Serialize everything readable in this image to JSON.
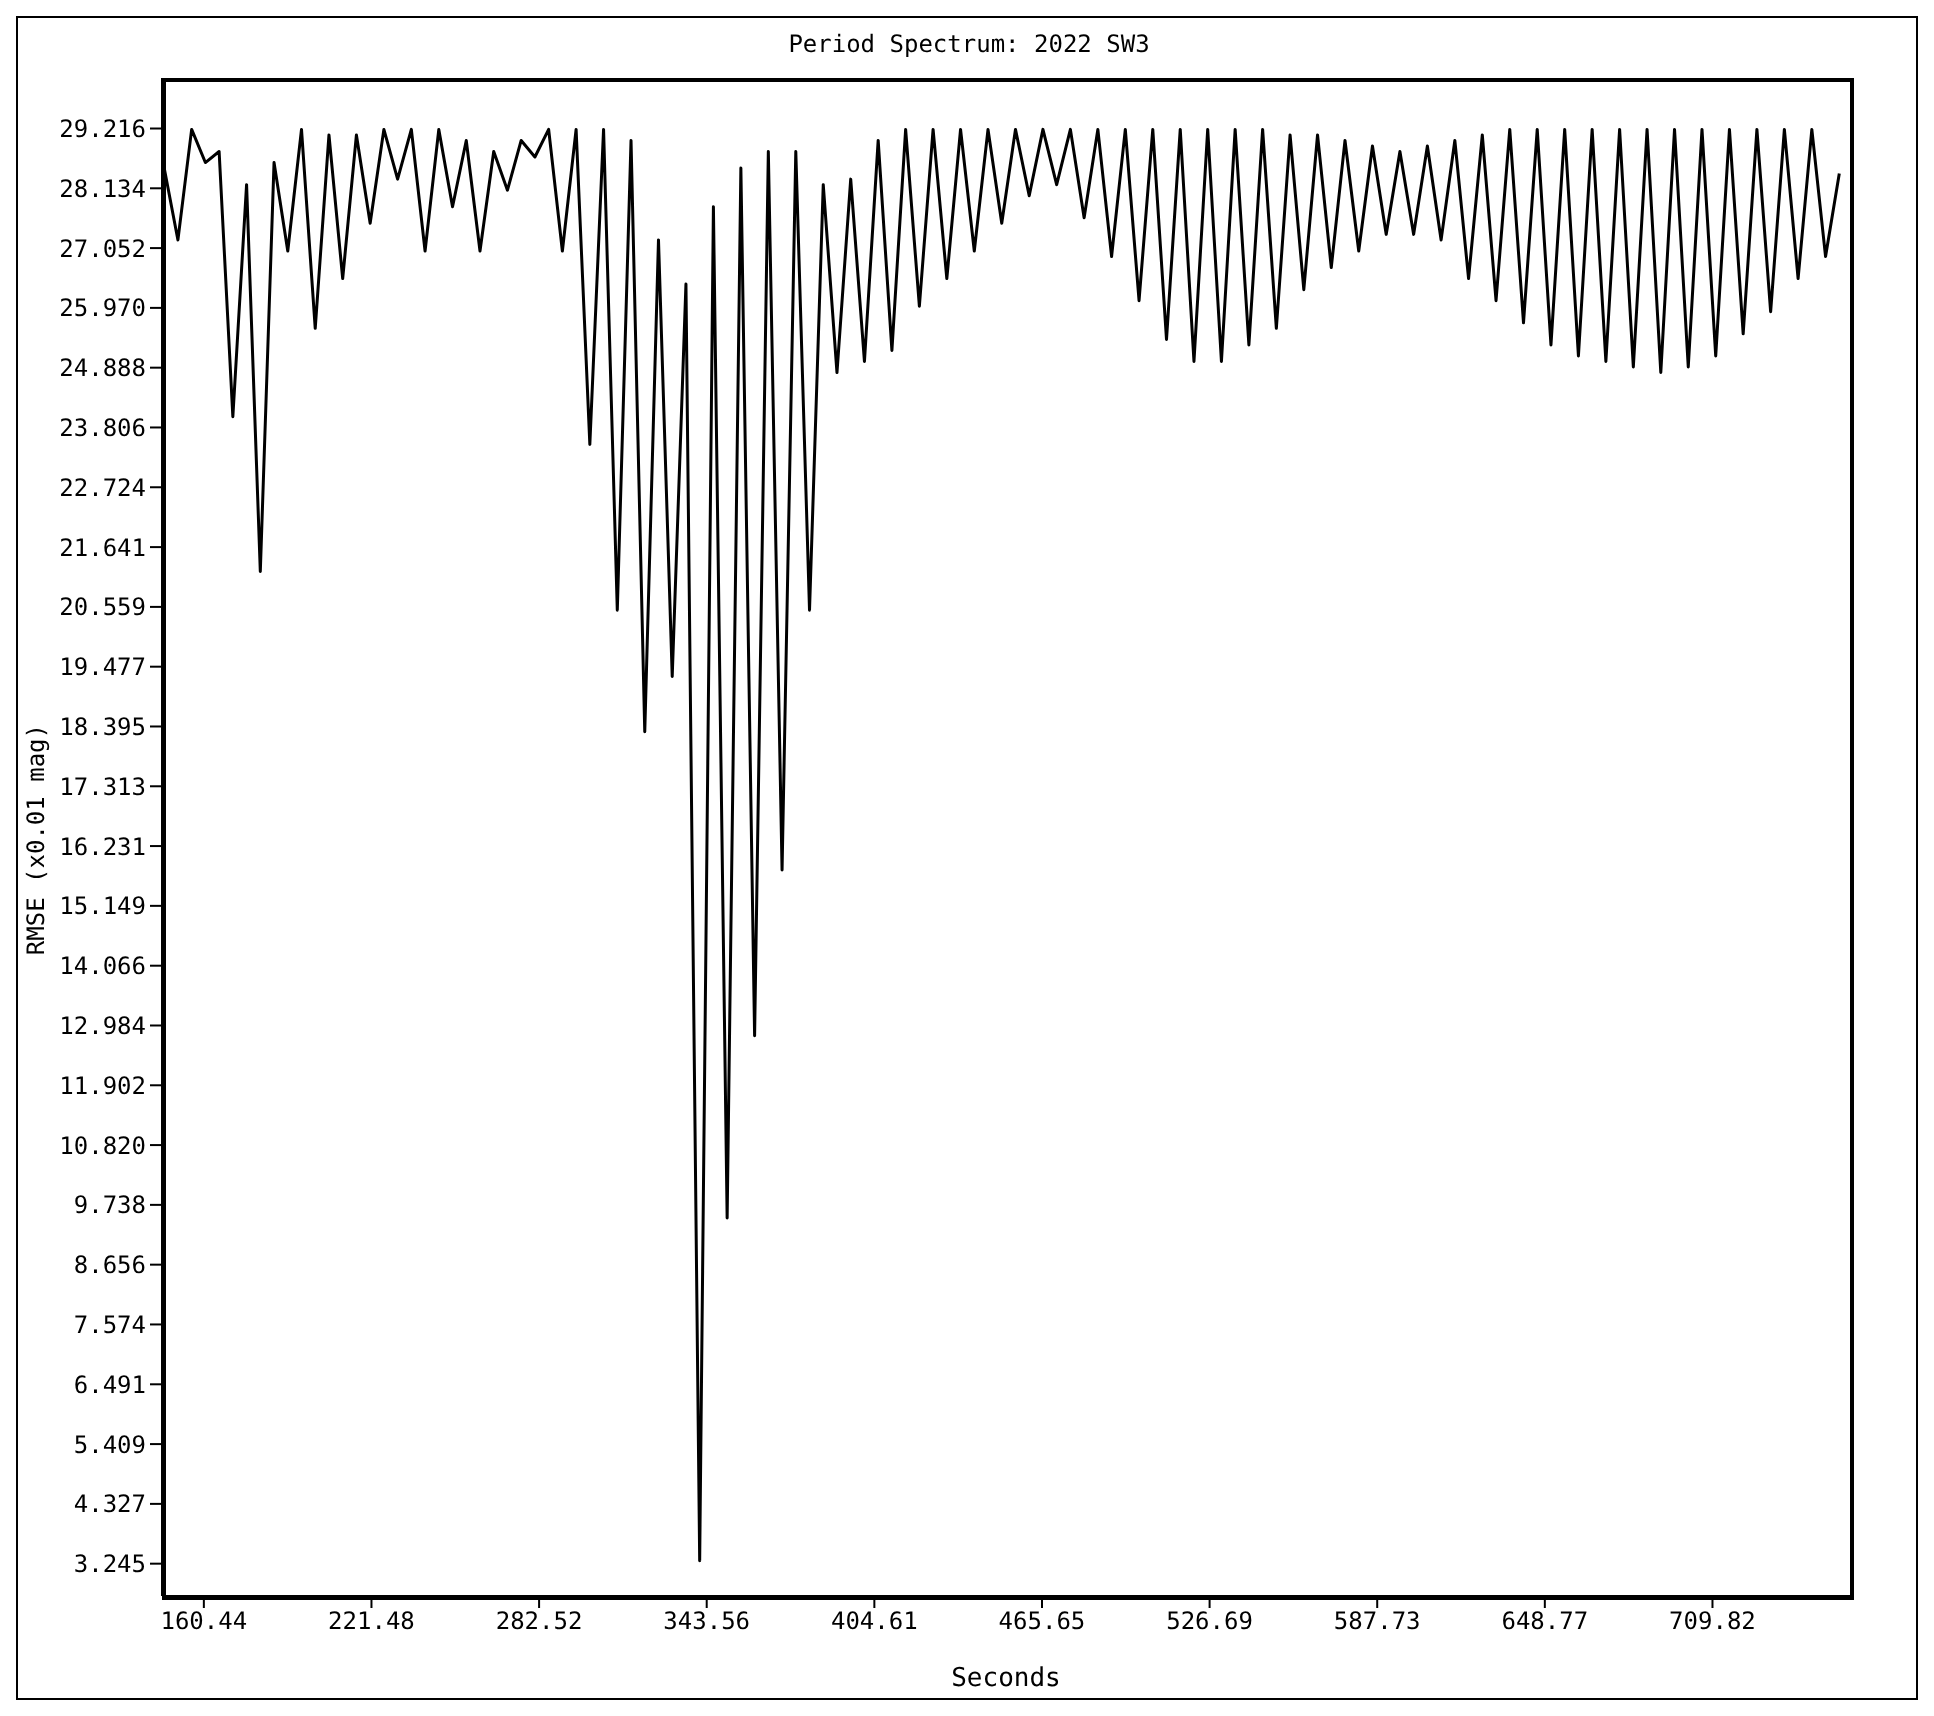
{
  "chart_data": {
    "type": "line",
    "title": "Period Spectrum: 2022 SW3",
    "xlabel": "Seconds",
    "ylabel": "RMSE (x0.01 mag)",
    "color": "#000000",
    "x": [
      146,
      151,
      156,
      161,
      166,
      171,
      176,
      181,
      186,
      191,
      196,
      201,
      206,
      211,
      216,
      221,
      226,
      231,
      236,
      241,
      246,
      251,
      256,
      261,
      266,
      271,
      276,
      281,
      286,
      291,
      296,
      301,
      306,
      311,
      316,
      321,
      326,
      331,
      336,
      341,
      346,
      351,
      356,
      361,
      366,
      371,
      376,
      381,
      386,
      391,
      396,
      401,
      406,
      411,
      416,
      421,
      426,
      431,
      436,
      441,
      446,
      451,
      456,
      461,
      466,
      471,
      476,
      481,
      486,
      491,
      496,
      501,
      506,
      511,
      516,
      521,
      526,
      531,
      536,
      541,
      546,
      551,
      556,
      561,
      566,
      571,
      576,
      581,
      586,
      591,
      596,
      601,
      606,
      611,
      616,
      621,
      626,
      631,
      636,
      641,
      646,
      651,
      656,
      661,
      666,
      671,
      676,
      681,
      686,
      691,
      696,
      701,
      706,
      711,
      716,
      721,
      726,
      731,
      736,
      741,
      746,
      751,
      756
    ],
    "values": [
      28.5,
      27.2,
      29.2,
      28.6,
      28.8,
      24.0,
      28.2,
      21.2,
      28.6,
      27.0,
      29.2,
      25.6,
      29.1,
      26.5,
      29.1,
      27.5,
      29.2,
      28.3,
      29.2,
      27.0,
      29.2,
      27.8,
      29.0,
      27.0,
      28.8,
      28.1,
      29.0,
      28.7,
      29.2,
      27.0,
      29.2,
      23.5,
      29.2,
      20.5,
      29.0,
      18.3,
      27.2,
      19.3,
      26.4,
      3.3,
      27.8,
      9.5,
      28.5,
      12.8,
      28.8,
      15.8,
      28.8,
      20.5,
      28.2,
      24.8,
      28.3,
      25.0,
      29.0,
      25.2,
      29.2,
      26.0,
      29.2,
      26.5,
      29.2,
      27.0,
      29.2,
      27.5,
      29.2,
      28.0,
      29.2,
      28.2,
      29.2,
      27.6,
      29.2,
      26.9,
      29.2,
      26.1,
      29.2,
      25.4,
      29.2,
      25.0,
      29.2,
      25.0,
      29.2,
      25.3,
      29.2,
      25.6,
      29.1,
      26.3,
      29.1,
      26.7,
      29.0,
      27.0,
      28.9,
      27.3,
      28.8,
      27.3,
      28.9,
      27.2,
      29.0,
      26.5,
      29.1,
      26.1,
      29.2,
      25.7,
      29.2,
      25.3,
      29.2,
      25.1,
      29.2,
      25.0,
      29.2,
      24.9,
      29.2,
      24.8,
      29.2,
      24.9,
      29.2,
      25.1,
      29.2,
      25.5,
      29.2,
      25.9,
      29.2,
      26.5,
      29.2,
      26.9,
      28.4
    ],
    "xlim": [
      145.2,
      759.9
    ],
    "ylim": [
      2.66,
      30.13
    ],
    "xticks": [
      160.44,
      221.48,
      282.52,
      343.56,
      404.61,
      465.65,
      526.69,
      587.73,
      648.77,
      709.82
    ],
    "yticks": [
      3.245,
      4.327,
      5.409,
      6.491,
      7.574,
      8.656,
      9.738,
      {
        "value": 10.82,
        "label": "10.820"
      },
      11.902,
      12.984,
      14.066,
      15.149,
      16.231,
      17.313,
      18.395,
      19.477,
      20.559,
      21.641,
      22.724,
      23.806,
      24.888,
      {
        "value": 25.97,
        "label": "25.970"
      },
      27.052,
      28.134,
      29.216
    ]
  }
}
